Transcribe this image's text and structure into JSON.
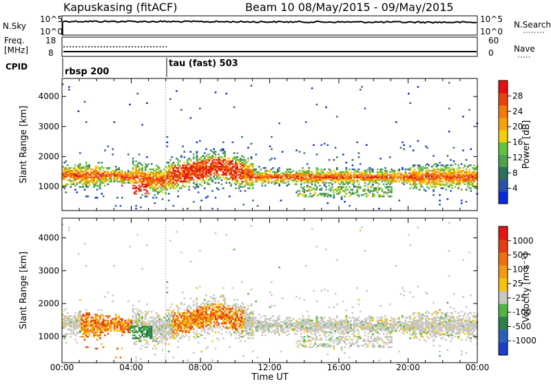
{
  "header": {
    "station": "Kapuskasing (fitACF)",
    "beam_date": "Beam 10 08/May/2015 - 09/May/2015"
  },
  "top_panels": {
    "nsky_label": "N.Sky",
    "nsky_ticks": [
      "10^5",
      "10^0"
    ],
    "nsearch_label": "N.Search",
    "freq_label": "Freq.",
    "freq_unit": "[MHz]",
    "freq_ticks": [
      "18",
      "8"
    ],
    "nave_ticks": [
      "60",
      "0"
    ],
    "nave_label": "Nave",
    "cpid_label": "CPID",
    "cpid_segments": [
      "rbsp 200",
      "tau (fast) 503"
    ]
  },
  "chart_data": [
    {
      "type": "heatmap",
      "title": "",
      "ylabel": "Slant Range [km]",
      "xlabel": "",
      "xlim_hours": [
        0,
        24
      ],
      "ylim": [
        200,
        4600
      ],
      "y_ticks": [
        1000,
        2000,
        3000,
        4000
      ],
      "colorbar": {
        "label": "Power [dB]",
        "ticks": [
          "4",
          "8",
          "12",
          "16",
          "20",
          "24",
          "28"
        ],
        "colors": [
          "#0a2bd8",
          "#2a52a8",
          "#2e6f5e",
          "#4fa24f",
          "#62c33e",
          "#f1cf0a",
          "#f7a10a",
          "#f07a0c",
          "#e9400f",
          "#e41010"
        ]
      }
    },
    {
      "type": "heatmap",
      "title": "",
      "ylabel": "Slant Range [km]",
      "xlabel": "Time UT",
      "xlim_hours": [
        0,
        24
      ],
      "ylim": [
        200,
        4600
      ],
      "y_ticks": [
        1000,
        2000,
        3000,
        4000
      ],
      "x_ticks": [
        "00:00",
        "04:00",
        "08:00",
        "12:00",
        "16:00",
        "20:00",
        "00:00"
      ],
      "colorbar": {
        "label": "Velocity [m s⁻¹]",
        "ticks": [
          "1000",
          "500",
          "100",
          "25",
          "-25",
          "-100",
          "-500",
          "-1000"
        ],
        "colors": [
          "#1a3fc8",
          "#2c60b8",
          "#2f7f4f",
          "#51b544",
          "#c8c8c0",
          "#f5c30b",
          "#f19a12",
          "#ee7010",
          "#e53b10",
          "#e31414"
        ]
      }
    }
  ]
}
